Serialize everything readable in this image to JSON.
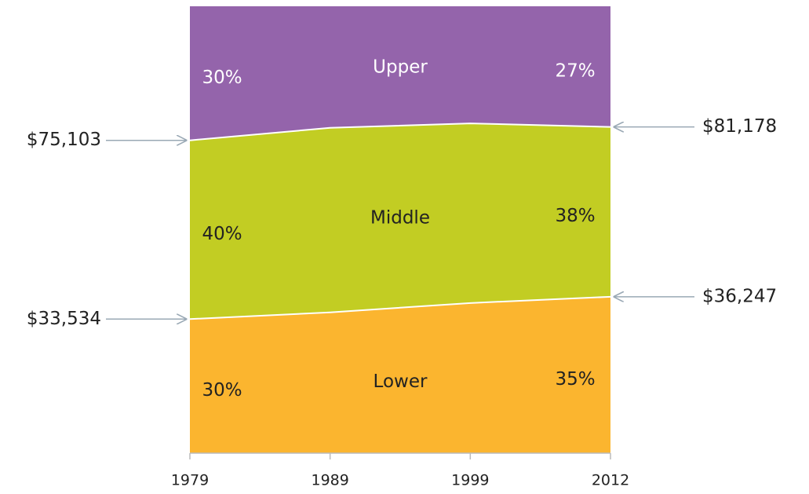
{
  "chart_data": {
    "type": "stacked_area",
    "categories": [
      "1979",
      "1989",
      "1999",
      "2012"
    ],
    "ylim": [
      0,
      100
    ],
    "series": [
      {
        "name": "Lower",
        "color": "#fbb52f",
        "values": [
          30,
          31.5,
          33.6,
          35
        ],
        "value_labels": [
          "30%",
          null,
          null,
          "35%"
        ],
        "text_color": "#222222"
      },
      {
        "name": "Middle",
        "color": "#c2cd23",
        "values": [
          40,
          41.3,
          40.2,
          38
        ],
        "value_labels": [
          "40%",
          null,
          null,
          "38%"
        ],
        "text_color": "#222222"
      },
      {
        "name": "Upper",
        "color": "#9464ab",
        "values": [
          30,
          27.2,
          26.2,
          27
        ],
        "value_labels": [
          "30%",
          null,
          null,
          "27%"
        ],
        "text_color": "#ffffff"
      }
    ],
    "boundary_labels": [
      [
        "$33,534",
        "$36,247"
      ],
      [
        "$75,103",
        "$81,178"
      ]
    ]
  }
}
